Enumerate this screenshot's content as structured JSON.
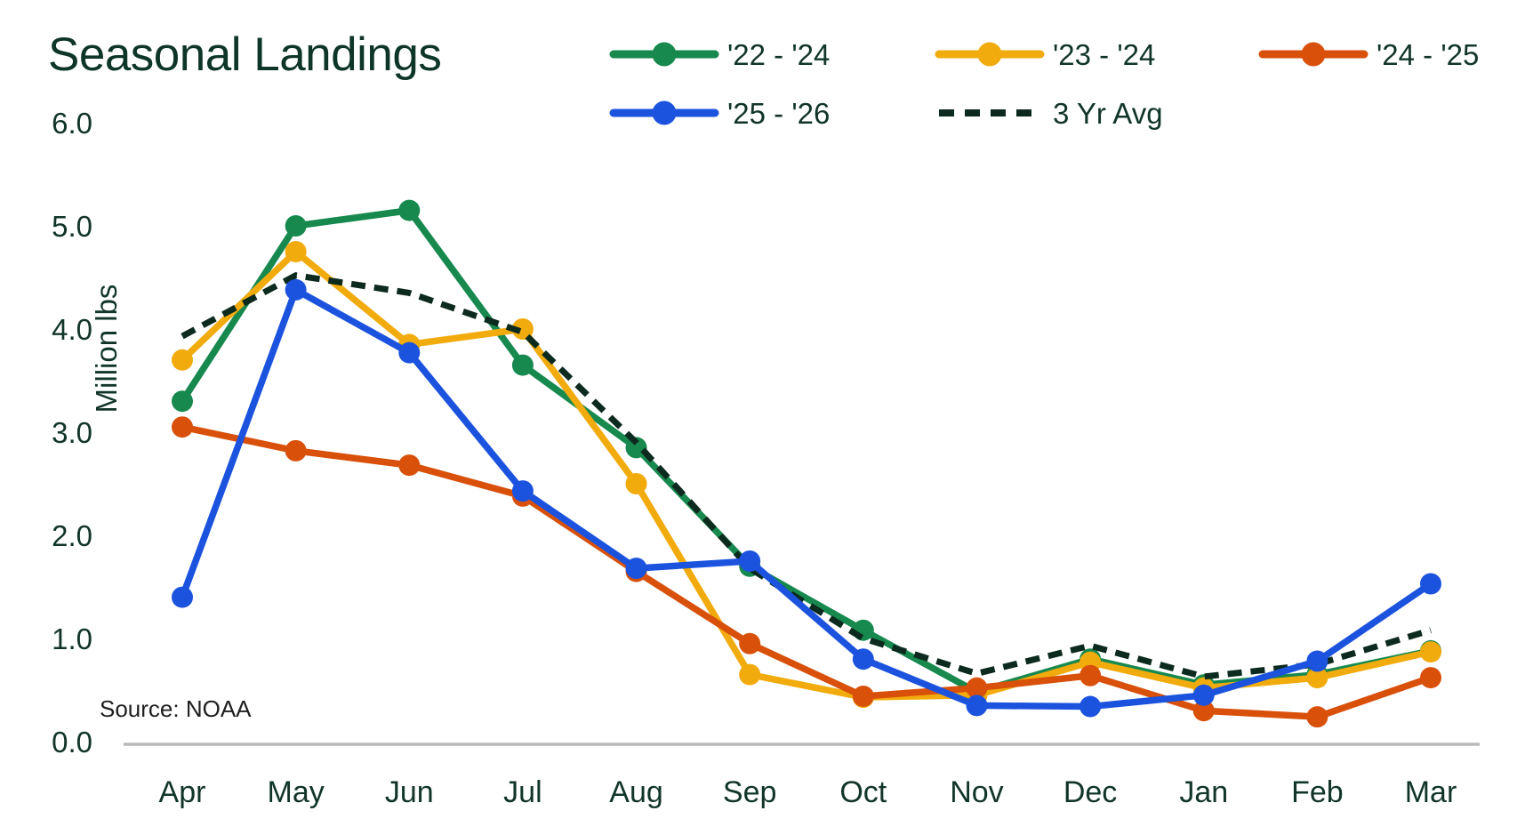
{
  "title": "Seasonal Landings",
  "source_note": "Source: NOAA",
  "colors": {
    "title_text": "#0d3528",
    "axis_text": "#123529",
    "source_text": "#1f1f1f",
    "baseline": "#b9b9b9",
    "background": "#ffffff"
  },
  "y_axis": {
    "label": "Million lbs",
    "ticks": [
      "6.0",
      "5.0",
      "4.0",
      "3.0",
      "2.0",
      "1.0",
      "0.0"
    ]
  },
  "chart_data": {
    "type": "line",
    "title": "Seasonal Landings",
    "xlabel": "",
    "ylabel": "Million lbs",
    "ylim": [
      0,
      6
    ],
    "grid": false,
    "legend_position": "top",
    "categories": [
      "Apr",
      "May",
      "Jun",
      "Jul",
      "Aug",
      "Sep",
      "Oct",
      "Nov",
      "Dec",
      "Jan",
      "Feb",
      "Mar"
    ],
    "series": [
      {
        "name": "'22 - '24",
        "color": "#17894e",
        "style": "solid",
        "values": [
          3.3,
          5.0,
          5.15,
          3.65,
          2.85,
          1.7,
          1.08,
          0.48,
          0.8,
          0.55,
          0.65,
          0.88
        ]
      },
      {
        "name": "'23 - '24",
        "color": "#f2ab0d",
        "style": "solid",
        "values": [
          3.7,
          4.75,
          3.85,
          4.0,
          2.5,
          0.65,
          0.43,
          0.45,
          0.77,
          0.52,
          0.62,
          0.87
        ]
      },
      {
        "name": "'24 - '25",
        "color": "#d8500a",
        "style": "solid",
        "values": [
          3.05,
          2.82,
          2.68,
          2.38,
          1.65,
          0.95,
          0.44,
          0.52,
          0.64,
          0.3,
          0.24,
          0.62
        ]
      },
      {
        "name": "'25 - '26",
        "color": "#1c53de",
        "style": "solid",
        "values": [
          1.4,
          4.38,
          3.77,
          2.43,
          1.68,
          1.75,
          0.8,
          0.35,
          0.34,
          0.45,
          0.78,
          1.53
        ]
      },
      {
        "name": "3 Yr Avg",
        "color": "#0d2a1e",
        "style": "dashed",
        "values": [
          3.93,
          4.52,
          4.35,
          3.97,
          2.9,
          1.68,
          1.0,
          0.66,
          0.93,
          0.63,
          0.75,
          1.08
        ]
      }
    ]
  }
}
